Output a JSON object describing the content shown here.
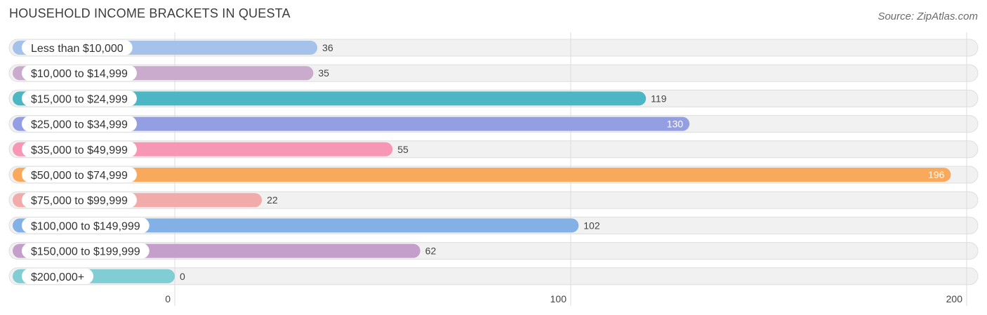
{
  "chart_data": {
    "type": "bar",
    "orientation": "horizontal",
    "title": "HOUSEHOLD INCOME BRACKETS IN QUESTA",
    "source": "Source: ZipAtlas.com",
    "categories": [
      "Less than $10,000",
      "$10,000 to $14,999",
      "$15,000 to $24,999",
      "$25,000 to $34,999",
      "$35,000 to $49,999",
      "$50,000 to $74,999",
      "$75,000 to $99,999",
      "$100,000 to $149,999",
      "$150,000 to $199,999",
      "$200,000+"
    ],
    "values": [
      36,
      35,
      119,
      130,
      55,
      196,
      22,
      102,
      62,
      0
    ],
    "colors": [
      "#a4c2ea",
      "#cbabcd",
      "#4db6c4",
      "#949fe3",
      "#f797b5",
      "#f9a95c",
      "#f0abaa",
      "#84b1e5",
      "#c49fcb",
      "#80cdd3"
    ],
    "xlim": [
      0,
      200
    ],
    "xticks": [
      0,
      100,
      200
    ],
    "xtick_labels": [
      "0",
      "100",
      "200"
    ],
    "grid": true
  }
}
